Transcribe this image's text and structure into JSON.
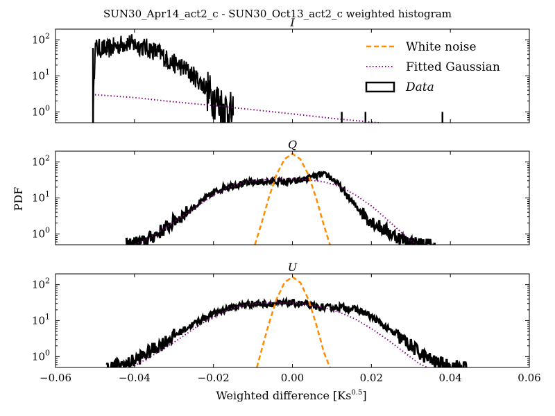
{
  "chart_data": {
    "type": "line",
    "suptitle": "SUN30_Apr14_act2_c - SUN30_Oct13_act2_c weighted histogram",
    "xlabel_prefix": "Weighted difference [Ks",
    "xlabel_sup": "0.5",
    "xlabel_suffix": "]",
    "ylabel": "PDF",
    "xlim": [
      -0.06,
      0.06
    ],
    "ylim": [
      0.5,
      200
    ],
    "yscale": "log",
    "xticks": [
      -0.06,
      -0.04,
      -0.02,
      0.0,
      0.02,
      0.04,
      0.06
    ],
    "xtick_labels": [
      "−0.06",
      "−0.04",
      "−0.02",
      "0.00",
      "0.02",
      "0.04",
      "0.06"
    ],
    "ytick_labels": [
      {
        "base": "10",
        "exp": "2",
        "value": 100
      },
      {
        "base": "10",
        "exp": "1",
        "value": 10
      },
      {
        "base": "10",
        "exp": "0",
        "value": 1
      }
    ],
    "legend": {
      "position": "upper right",
      "entries": [
        "White noise",
        "Fitted Gaussian",
        "Data"
      ]
    },
    "colors": {
      "white_noise": "#ff8c00",
      "fitted_gaussian": "#800080",
      "data": "#000000"
    },
    "panels": [
      {
        "title": "I",
        "fitted_gaussian": {
          "x": [
            -0.05,
            -0.04,
            -0.03,
            -0.02,
            -0.01,
            0.0,
            0.01,
            0.02,
            0.022
          ],
          "y": [
            3.0,
            2.5,
            1.9,
            1.5,
            1.15,
            0.88,
            0.66,
            0.52,
            0.5
          ]
        },
        "white_noise": null,
        "data": {
          "x": [
            -0.0505,
            -0.05,
            -0.047,
            -0.044,
            -0.042,
            -0.04,
            -0.038,
            -0.036,
            -0.034,
            -0.033,
            -0.032,
            -0.031,
            -0.03,
            -0.029,
            -0.028,
            -0.027,
            -0.026,
            -0.025,
            -0.024,
            -0.023,
            -0.022,
            -0.021,
            -0.02,
            -0.019,
            -0.018,
            -0.017,
            -0.016,
            -0.015
          ],
          "y": [
            0.5,
            60,
            55,
            70,
            85,
            75,
            65,
            55,
            45,
            38,
            30,
            25,
            22,
            20,
            18,
            15,
            12,
            10,
            8,
            6,
            5,
            3,
            2.5,
            2,
            1.5,
            1.2,
            1.0,
            0.8
          ],
          "spikes": [
            0.0125,
            0.0185,
            0.038
          ]
        }
      },
      {
        "title": "Q",
        "fitted_gaussian": {
          "x": [
            -0.042,
            -0.04,
            -0.036,
            -0.032,
            -0.028,
            -0.024,
            -0.02,
            -0.016,
            -0.012,
            -0.008,
            -0.004,
            0.0,
            0.004,
            0.008,
            0.012,
            0.016,
            0.02,
            0.024,
            0.028,
            0.032
          ],
          "y": [
            0.4,
            0.5,
            0.8,
            1.5,
            3.0,
            6.0,
            12.0,
            20.0,
            27.0,
            32.0,
            34.0,
            34.0,
            32.0,
            28.0,
            21.0,
            12.0,
            6.0,
            2.5,
            1.0,
            0.45
          ]
        },
        "white_noise": {
          "x": [
            -0.0095,
            -0.008,
            -0.006,
            -0.004,
            -0.002,
            0.0,
            0.002,
            0.004,
            0.006,
            0.008,
            0.0095
          ],
          "y": [
            0.5,
            1.7,
            10.0,
            45.0,
            120.0,
            170.0,
            120.0,
            45.0,
            10.0,
            1.7,
            0.5
          ]
        },
        "data": {
          "x": [
            -0.042,
            -0.038,
            -0.035,
            -0.032,
            -0.029,
            -0.026,
            -0.023,
            -0.02,
            -0.017,
            -0.014,
            -0.011,
            -0.008,
            -0.005,
            -0.002,
            0.001,
            0.004,
            0.007,
            0.009,
            0.011,
            0.013,
            0.016,
            0.019,
            0.022,
            0.025,
            0.028,
            0.031,
            0.034,
            0.036
          ],
          "y": [
            0.5,
            0.6,
            0.9,
            1.5,
            2.7,
            4.5,
            8.0,
            14.0,
            20.0,
            24.0,
            26.0,
            28.0,
            29.0,
            28.0,
            29.0,
            35.0,
            44.0,
            42.0,
            28.0,
            15.0,
            6.0,
            2.8,
            1.6,
            1.0,
            0.7,
            0.55,
            0.5,
            0.45
          ]
        }
      },
      {
        "title": "U",
        "fitted_gaussian": {
          "x": [
            -0.042,
            -0.04,
            -0.036,
            -0.032,
            -0.028,
            -0.024,
            -0.02,
            -0.016,
            -0.012,
            -0.008,
            -0.004,
            0.0,
            0.004,
            0.008,
            0.012,
            0.016,
            0.02,
            0.024,
            0.028,
            0.032,
            0.036
          ],
          "y": [
            0.4,
            0.55,
            1.0,
            1.8,
            3.5,
            7.0,
            13.0,
            21.0,
            27.0,
            31.0,
            32.0,
            31.0,
            28.0,
            23.0,
            17.0,
            11.0,
            6.0,
            3.0,
            1.4,
            0.65,
            0.4
          ]
        },
        "white_noise": {
          "x": [
            -0.009,
            -0.008,
            -0.006,
            -0.004,
            -0.002,
            0.0,
            0.002,
            0.004,
            0.006,
            0.008,
            0.0095
          ],
          "y": [
            0.5,
            1.3,
            8.0,
            40.0,
            115.0,
            165.0,
            115.0,
            40.0,
            8.0,
            1.3,
            0.5
          ]
        },
        "data": {
          "x": [
            -0.047,
            -0.042,
            -0.039,
            -0.036,
            -0.033,
            -0.03,
            -0.027,
            -0.024,
            -0.021,
            -0.018,
            -0.015,
            -0.012,
            -0.009,
            -0.006,
            -0.003,
            0.0,
            0.003,
            0.006,
            0.009,
            0.012,
            0.015,
            0.018,
            0.021,
            0.024,
            0.027,
            0.03,
            0.033,
            0.036,
            0.04,
            0.044
          ],
          "y": [
            0.5,
            0.6,
            0.9,
            1.4,
            2.3,
            3.8,
            6.0,
            9.5,
            14.0,
            19.0,
            24.0,
            28.0,
            30.0,
            29.0,
            30.0,
            31.0,
            29.0,
            24.0,
            23.0,
            24.0,
            22.0,
            17.0,
            11.0,
            6.0,
            3.5,
            2.0,
            1.1,
            0.7,
            0.55,
            0.5
          ]
        }
      }
    ]
  }
}
